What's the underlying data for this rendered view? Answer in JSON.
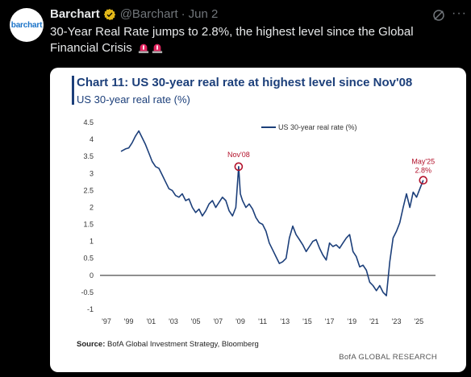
{
  "tweet": {
    "author_name": "Barchart",
    "handle": "@Barchart",
    "separator": "·",
    "date": "Jun 2",
    "avatar_text": "barchart",
    "text_main": "30-Year Real Rate jumps to 2.8%, the highest level since the Global Financial Crisis",
    "emoji_names": [
      "siren-emoji",
      "siren-emoji"
    ],
    "more_label": "···"
  },
  "card": {
    "title": "Chart 11: US 30-year real rate at highest level since Nov'08",
    "subtitle": "US 30-year real rate (%)",
    "source_label": "Source:",
    "source_text": "BofA Global Investment Strategy, Bloomberg",
    "brand": "BofA GLOBAL RESEARCH"
  },
  "chart_data": {
    "type": "line",
    "title": "Chart 11: US 30-year real rate at highest level since Nov'08",
    "ylabel": "US 30-year real rate (%)",
    "ylim": [
      -1,
      4.5
    ],
    "yticks": [
      "4.5",
      "4",
      "3.5",
      "3",
      "2.5",
      "2",
      "1.5",
      "1",
      "0.5",
      "0",
      "-0.5",
      "-1"
    ],
    "xticks": [
      "'97",
      "'99",
      "'01",
      "'03",
      "'05",
      "'07",
      "'09",
      "'11",
      "'13",
      "'15",
      "'17",
      "'19",
      "'21",
      "'23",
      "'25"
    ],
    "xlim": [
      1997,
      2026.5
    ],
    "legend": {
      "label": "US 30-year real rate (%)",
      "position": "top-center"
    },
    "series": [
      {
        "name": "US 30-year real rate (%)",
        "color": "#1c3f7a",
        "x": [
          1998.3,
          1998.7,
          1999.0,
          1999.3,
          1999.6,
          1999.9,
          2000.2,
          2000.5,
          2000.8,
          2001.1,
          2001.4,
          2001.7,
          2002.0,
          2002.3,
          2002.6,
          2002.9,
          2003.2,
          2003.5,
          2003.8,
          2004.1,
          2004.4,
          2004.7,
          2005.0,
          2005.3,
          2005.6,
          2005.9,
          2006.2,
          2006.5,
          2006.8,
          2007.1,
          2007.4,
          2007.7,
          2008.0,
          2008.3,
          2008.6,
          2008.85,
          2009.0,
          2009.2,
          2009.5,
          2009.8,
          2010.1,
          2010.4,
          2010.7,
          2011.0,
          2011.3,
          2011.6,
          2011.9,
          2012.2,
          2012.5,
          2012.8,
          2013.1,
          2013.4,
          2013.7,
          2014.0,
          2014.3,
          2014.6,
          2014.9,
          2015.2,
          2015.5,
          2015.8,
          2016.1,
          2016.4,
          2016.7,
          2017.0,
          2017.3,
          2017.6,
          2017.9,
          2018.2,
          2018.5,
          2018.8,
          2019.1,
          2019.4,
          2019.7,
          2020.0,
          2020.3,
          2020.6,
          2020.9,
          2021.2,
          2021.5,
          2021.8,
          2022.1,
          2022.4,
          2022.7,
          2023.0,
          2023.3,
          2023.6,
          2023.9,
          2024.2,
          2024.5,
          2024.8,
          2025.1,
          2025.4
        ],
        "values": [
          3.65,
          3.72,
          3.75,
          3.9,
          4.1,
          4.25,
          4.05,
          3.85,
          3.6,
          3.35,
          3.2,
          3.15,
          2.95,
          2.75,
          2.55,
          2.5,
          2.35,
          2.3,
          2.4,
          2.2,
          2.25,
          2.0,
          1.85,
          1.95,
          1.75,
          1.9,
          2.1,
          2.2,
          2.0,
          2.15,
          2.3,
          2.2,
          1.9,
          1.75,
          2.0,
          3.2,
          2.4,
          2.2,
          2.0,
          2.1,
          1.95,
          1.7,
          1.55,
          1.5,
          1.3,
          0.95,
          0.75,
          0.55,
          0.35,
          0.4,
          0.5,
          1.1,
          1.45,
          1.2,
          1.05,
          0.9,
          0.7,
          0.85,
          1.0,
          1.05,
          0.8,
          0.6,
          0.45,
          0.95,
          0.85,
          0.9,
          0.8,
          0.95,
          1.1,
          1.2,
          0.7,
          0.55,
          0.25,
          0.3,
          0.15,
          -0.2,
          -0.3,
          -0.45,
          -0.3,
          -0.5,
          -0.6,
          0.4,
          1.1,
          1.3,
          1.55,
          2.0,
          2.4,
          2.0,
          2.45,
          2.3,
          2.55,
          2.8
        ]
      }
    ],
    "annotations": [
      {
        "label": "Nov'08",
        "x": 2008.85,
        "y": 3.2
      },
      {
        "label": "May'25",
        "sublabel": "2.8%",
        "x": 2025.4,
        "y": 2.8
      }
    ]
  }
}
